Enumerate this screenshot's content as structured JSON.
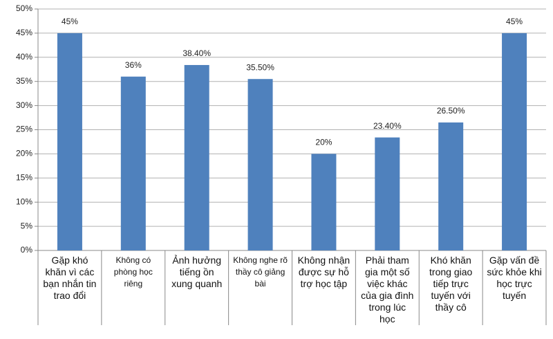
{
  "chart_data": {
    "type": "bar",
    "categories": [
      "Gặp khó khăn vì các bạn nhắn tin trao đổi",
      "Không có phòng học riêng",
      "Ảnh hưởng tiếng ồn xung quanh",
      "Không nghe rõ thầy cô giảng bài",
      "Không nhận được sự hỗ trợ học tập",
      "Phải tham gia một số việc khác của gia đình trong lúc học",
      "Khó khăn trong giao tiếp trực tuyến với thầy cô",
      "Gặp vấn đề sức khỏe khi học trực tuyến"
    ],
    "values": [
      45,
      36,
      38.4,
      35.5,
      20,
      23.4,
      26.5,
      45
    ],
    "value_labels": [
      "45%",
      "36%",
      "38.40%",
      "35.50%",
      "20%",
      "23.40%",
      "26.50%",
      "45%"
    ],
    "color": "#4f81bd",
    "ylim": [
      0,
      50
    ],
    "yticks": [
      {
        "value": 0,
        "label": "0%"
      },
      {
        "value": 5,
        "label": "5%"
      },
      {
        "value": 10,
        "label": "10%"
      },
      {
        "value": 15,
        "label": "15%"
      },
      {
        "value": 20,
        "label": "20%"
      },
      {
        "value": 25,
        "label": "25%"
      },
      {
        "value": 30,
        "label": "30%"
      },
      {
        "value": 35,
        "label": "35%"
      },
      {
        "value": 40,
        "label": "40%"
      },
      {
        "value": 45,
        "label": "45%"
      },
      {
        "value": 50,
        "label": "50%"
      }
    ],
    "grid": true
  }
}
